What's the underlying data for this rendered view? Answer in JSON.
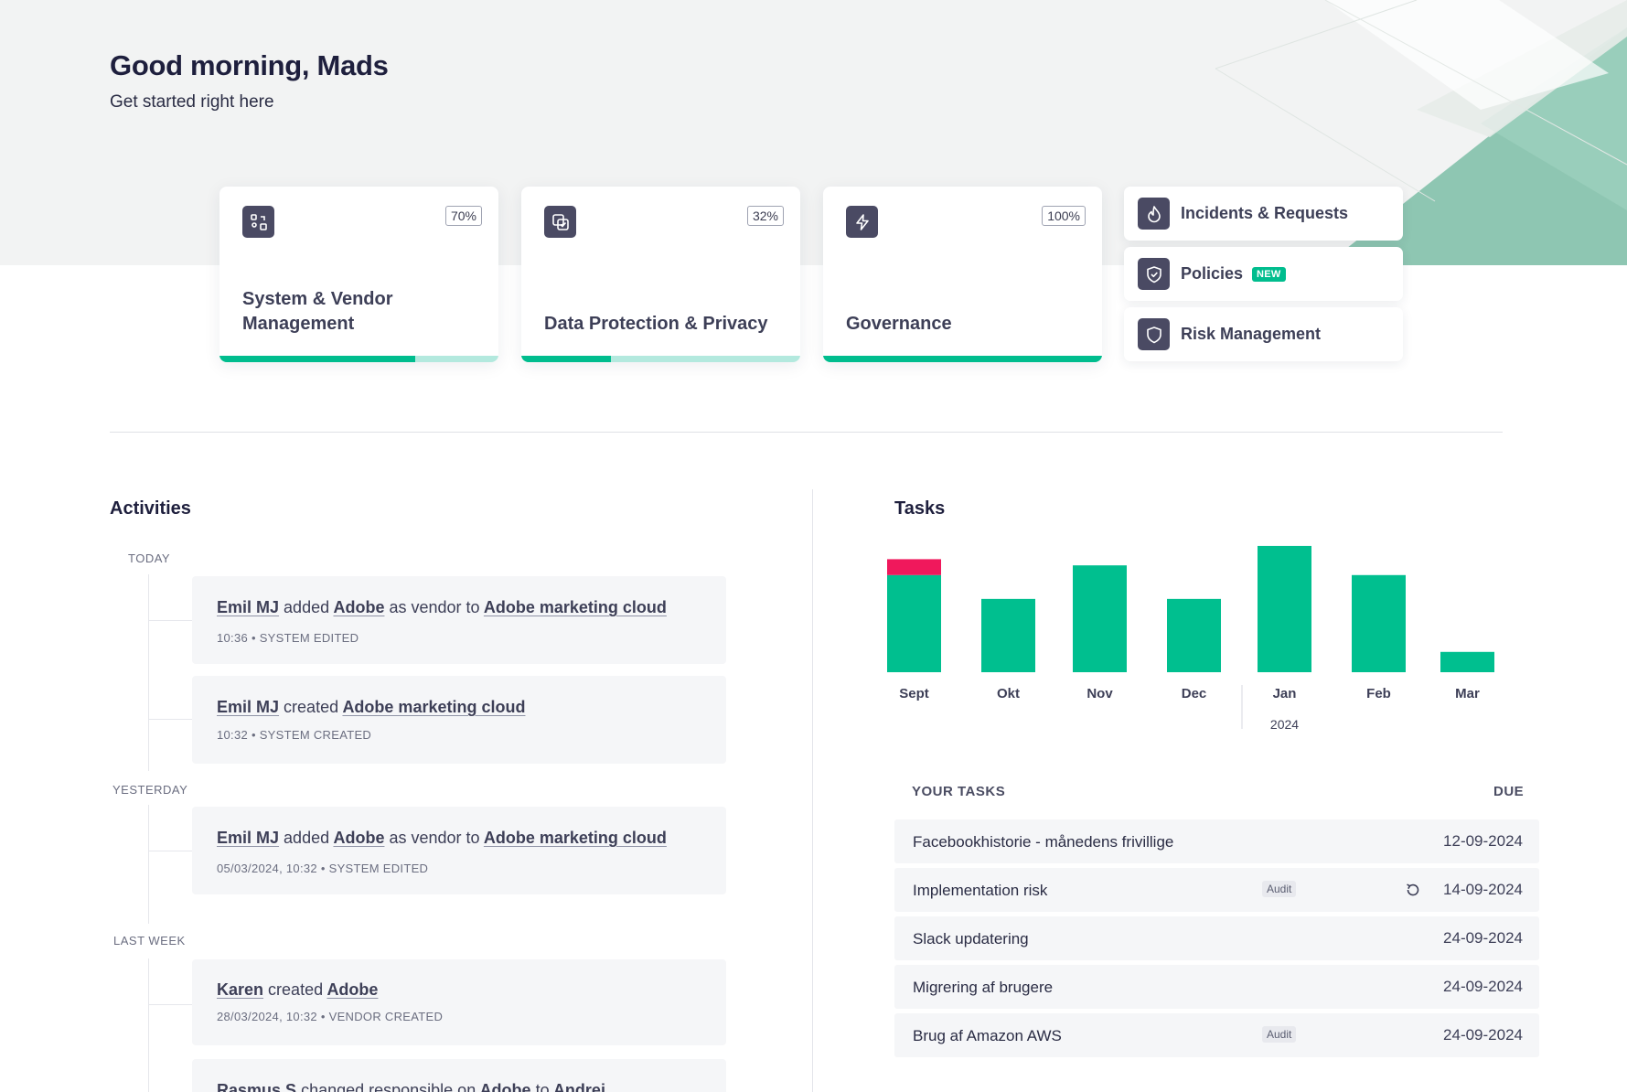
{
  "header": {
    "greeting": "Good morning, Mads",
    "subtitle": "Get started right here"
  },
  "cards": [
    {
      "title": "System & Vendor Management",
      "percent_label": "70%",
      "progress": 0.7,
      "icon": "vendor-icon"
    },
    {
      "title": "Data Protection & Privacy",
      "percent_label": "32%",
      "progress": 0.32,
      "icon": "privacy-icon"
    },
    {
      "title": "Governance",
      "percent_label": "100%",
      "progress": 1.0,
      "icon": "lightning-icon"
    }
  ],
  "quick_links": [
    {
      "label": "Incidents & Requests",
      "icon": "fire-icon"
    },
    {
      "label": "Policies",
      "badge": "NEW",
      "icon": "shield-check-icon"
    },
    {
      "label": "Risk Management",
      "icon": "shield-icon"
    }
  ],
  "activities": {
    "title": "Activities",
    "groups": [
      {
        "label": "TODAY"
      },
      {
        "label": "YESTERDAY"
      },
      {
        "label": "LAST WEEK"
      }
    ],
    "items": [
      {
        "actor": "Emil MJ",
        "verb1": "added",
        "obj1": "Adobe",
        "verb2": "as vendor to",
        "obj2": "Adobe marketing cloud",
        "meta": "10:36 • SYSTEM EDITED"
      },
      {
        "actor": "Emil MJ",
        "verb1": "created",
        "obj1": "Adobe marketing cloud",
        "meta": "10:32 • SYSTEM CREATED"
      },
      {
        "actor": "Emil MJ",
        "verb1": "added",
        "obj1": "Adobe",
        "verb2": "as vendor to",
        "obj2": "Adobe marketing cloud",
        "meta": "05/03/2024, 10:32 • SYSTEM EDITED"
      },
      {
        "actor": "Karen",
        "verb1": "created",
        "obj1": "Adobe",
        "meta": "28/03/2024, 10:32 • VENDOR CREATED"
      },
      {
        "actor": "Rasmus S",
        "verb1": "changed responsible on",
        "obj1": "Adobe",
        "verb2": "to",
        "obj2": "Andrei"
      }
    ]
  },
  "tasks": {
    "title": "Tasks",
    "col_task": "YOUR TASKS",
    "col_due": "DUE",
    "rows": [
      {
        "name": "Facebookhistorie - månedens frivillige",
        "due": "12-09-2024"
      },
      {
        "name": "Implementation risk",
        "tag": "Audit",
        "recurring": true,
        "due": "14-09-2024"
      },
      {
        "name": "Slack updatering",
        "due": "24-09-2024"
      },
      {
        "name": "Migrering af brugere",
        "due": "24-09-2024"
      },
      {
        "name": "Brug af Amazon AWS",
        "tag": "Audit",
        "due": "24-09-2024"
      }
    ]
  },
  "chart_data": {
    "type": "bar",
    "categories": [
      "Sept",
      "Okt",
      "Nov",
      "Dec",
      "Jan",
      "Feb",
      "Mar"
    ],
    "year_marker": {
      "before_index": 4,
      "label": "2024"
    },
    "series": [
      {
        "values": [
          110,
          83,
          121,
          83,
          143,
          110,
          23
        ],
        "color": "#00bf8f"
      },
      {
        "values": [
          18,
          0,
          0,
          0,
          0,
          0,
          0
        ],
        "color": "#f0185c"
      }
    ],
    "ylim": [
      0,
      145
    ],
    "stacked": true,
    "grid": false,
    "xlabel": "",
    "ylabel": ""
  },
  "colors": {
    "accent": "#00bd8e",
    "accent_light": "#b3e9de",
    "overdue": "#f0185c",
    "icon_bg": "#4a4a63"
  }
}
